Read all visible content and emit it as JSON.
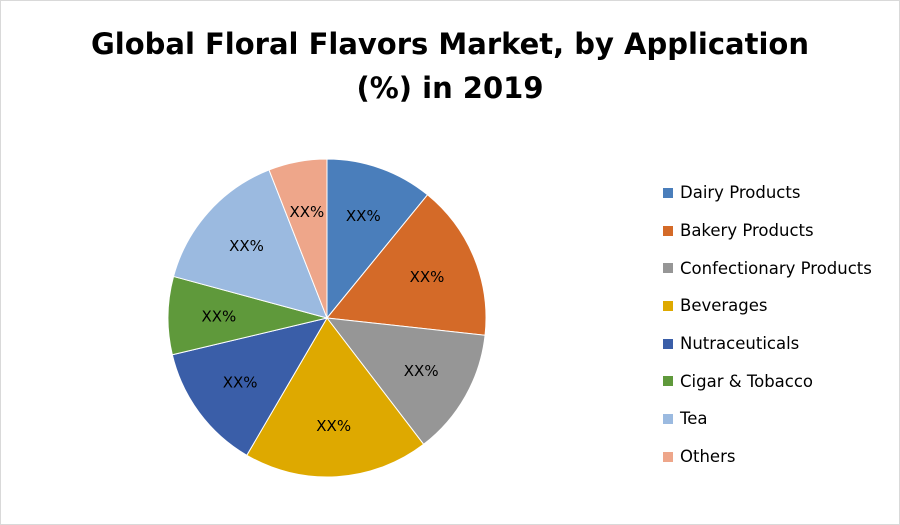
{
  "chart_data": {
    "type": "pie",
    "title_lines": [
      "Global Floral Flavors Market, by Application",
      "(%) in 2019"
    ],
    "categories": [
      "Dairy Products",
      "Bakery Products",
      "Confectionary Products",
      "Beverages",
      "Nutraceuticals",
      "Cigar & Tobacco",
      "Tea",
      "Others"
    ],
    "values": [
      11,
      16,
      13,
      19,
      13,
      8,
      15,
      6
    ],
    "data_labels": [
      "XX%",
      "XX%",
      "XX%",
      "XX%",
      "XX%",
      "XX%",
      "XX%",
      "XX%"
    ],
    "colors": [
      "#4a7ebb",
      "#d46a28",
      "#969696",
      "#dea900",
      "#3a5ea8",
      "#5f993b",
      "#9bbae0",
      "#eea68a"
    ],
    "legend_position": "right",
    "start_angle": "12 o'clock",
    "direction": "clockwise"
  }
}
